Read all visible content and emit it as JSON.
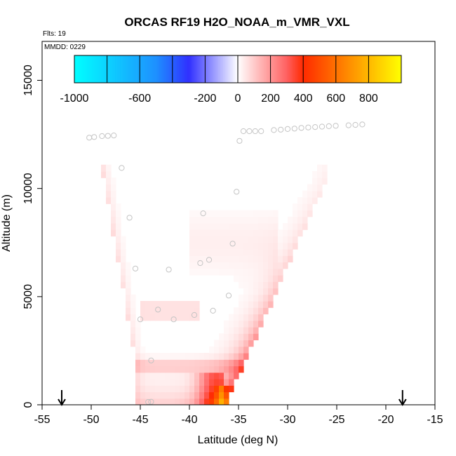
{
  "chart_data": {
    "type": "heatmap",
    "title": "ORCAS RF19 H2O_NOAA_m_VMR_VXL",
    "flights_label": "Flts: 19",
    "date_label": "MMDD: 0229",
    "xlabel": "Latitude (deg N)",
    "ylabel": "Altitude (m)",
    "xlim": [
      -55,
      -15
    ],
    "ylim": [
      0,
      16800
    ],
    "x_ticks": [
      -55,
      -50,
      -45,
      -40,
      -35,
      -30,
      -25,
      -20,
      -15
    ],
    "y_ticks": [
      0,
      5000,
      10000,
      15000
    ],
    "colorbar": {
      "range": [
        -1000,
        1000
      ],
      "tick_labels": [
        -1000,
        -600,
        -200,
        0,
        200,
        400,
        600,
        800
      ],
      "boundaries": [
        -1000,
        -800,
        -600,
        -400,
        -200,
        0,
        200,
        400,
        600,
        800,
        1000
      ],
      "colors": {
        "min": "#00ffff",
        "neg_mid": "#1e90ff",
        "neg_strong": "#3030ff",
        "zero": "#ffffff",
        "pos_mid": "#ff6060",
        "pos_strong": "#ff2a00",
        "max": "#ffff00"
      }
    },
    "arrows_latitude": [
      -53,
      -18.3
    ],
    "flight_points": [
      {
        "x": -50.2,
        "y": 12350
      },
      {
        "x": -49.7,
        "y": 12380
      },
      {
        "x": -48.9,
        "y": 12420
      },
      {
        "x": -48.3,
        "y": 12430
      },
      {
        "x": -47.7,
        "y": 12450
      },
      {
        "x": -46.9,
        "y": 10950
      },
      {
        "x": -46.1,
        "y": 8650
      },
      {
        "x": -45.5,
        "y": 6300
      },
      {
        "x": -45.0,
        "y": 3950
      },
      {
        "x": -44.2,
        "y": 130
      },
      {
        "x": -43.9,
        "y": 140
      },
      {
        "x": -43.9,
        "y": 2050
      },
      {
        "x": -43.2,
        "y": 4400
      },
      {
        "x": -42.1,
        "y": 6250
      },
      {
        "x": -41.6,
        "y": 3950
      },
      {
        "x": -39.5,
        "y": 4150
      },
      {
        "x": -38.9,
        "y": 6550
      },
      {
        "x": -38.6,
        "y": 8850
      },
      {
        "x": -38.0,
        "y": 6700
      },
      {
        "x": -37.6,
        "y": 4350
      },
      {
        "x": -36.0,
        "y": 5050
      },
      {
        "x": -35.6,
        "y": 7450
      },
      {
        "x": -35.2,
        "y": 9850
      },
      {
        "x": -34.9,
        "y": 12200
      },
      {
        "x": -34.5,
        "y": 12650
      },
      {
        "x": -33.9,
        "y": 12650
      },
      {
        "x": -33.3,
        "y": 12650
      },
      {
        "x": -32.7,
        "y": 12650
      },
      {
        "x": -31.4,
        "y": 12700
      },
      {
        "x": -30.7,
        "y": 12720
      },
      {
        "x": -30.0,
        "y": 12750
      },
      {
        "x": -29.3,
        "y": 12770
      },
      {
        "x": -28.6,
        "y": 12800
      },
      {
        "x": -27.9,
        "y": 12820
      },
      {
        "x": -27.2,
        "y": 12840
      },
      {
        "x": -26.5,
        "y": 12860
      },
      {
        "x": -25.8,
        "y": 12880
      },
      {
        "x": -25.1,
        "y": 12900
      },
      {
        "x": -23.8,
        "y": 12920
      },
      {
        "x": -23.1,
        "y": 12940
      },
      {
        "x": -22.4,
        "y": 12960
      }
    ]
  }
}
